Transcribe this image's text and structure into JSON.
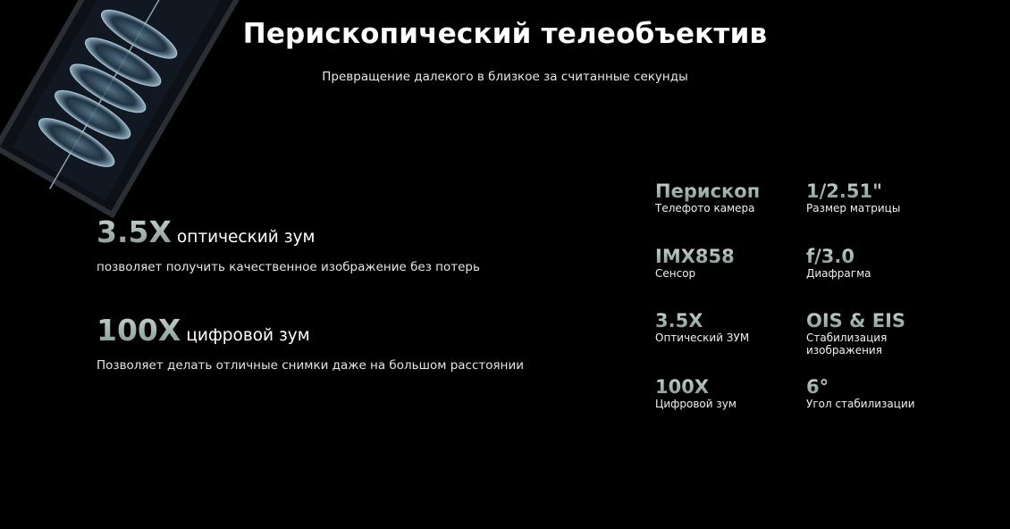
{
  "header": {
    "title": "Перископический телеобъектив",
    "subtitle": "Превращение далекого в близкое за считанные секунды"
  },
  "features": [
    {
      "value": "3.5X",
      "unit": "оптический зум",
      "description": "позволяет получить качественное изображение без потерь"
    },
    {
      "value": "100X",
      "unit": "цифровой зум",
      "description": "Позволяет делать отличные снимки даже на большом расстоянии"
    }
  ],
  "specs": [
    {
      "value": "Перископ",
      "label": "Телефото камера"
    },
    {
      "value": "1/2.51\"",
      "label": "Размер матрицы"
    },
    {
      "value": "IMX858",
      "label": "Сенсор"
    },
    {
      "value": "f/3.0",
      "label": "Диафрагма"
    },
    {
      "value": "3.5X",
      "label": "Оптический ЗУМ"
    },
    {
      "value": "OIS & EIS",
      "label": "Стабилизация изображения"
    },
    {
      "value": "100X",
      "label": "Цифровой зум"
    },
    {
      "value": "6°",
      "label": "Угол стабилизации"
    }
  ],
  "colors": {
    "background": "#000000",
    "accent_gradient_top": "#c9d6d0",
    "accent_gradient_bottom": "#7f958d"
  }
}
